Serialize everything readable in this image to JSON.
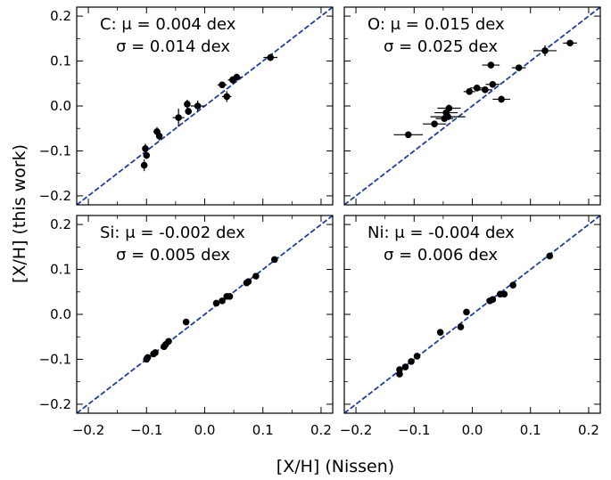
{
  "figure": {
    "xlabel": "[X/H] (Nissen)",
    "ylabel": "[X/H] (this work)"
  },
  "chart_data": [
    {
      "type": "scatter",
      "element": "C",
      "annotation": [
        "C: μ = 0.004 dex",
        "σ = 0.014 dex"
      ],
      "xlim": [
        -0.22,
        0.22
      ],
      "ylim": [
        -0.22,
        0.22
      ],
      "xticks": [
        "−0.2",
        "−0.1",
        "0.0",
        "0.1",
        "0.2"
      ],
      "yticks": [
        "−0.2",
        "−0.1",
        "0.0",
        "0.1",
        "0.2"
      ],
      "show_xticklabels": false,
      "show_yticklabels": true,
      "one_to_one_line": true,
      "line_color": "#1f3f9f",
      "points": [
        {
          "x": -0.104,
          "y": -0.132,
          "xerr": 0.003,
          "yerr": 0.013
        },
        {
          "x": -0.102,
          "y": -0.095,
          "xerr": 0.005,
          "yerr": 0.011
        },
        {
          "x": -0.1,
          "y": -0.11,
          "xerr": 0.004,
          "yerr": 0.008
        },
        {
          "x": -0.082,
          "y": -0.057,
          "xerr": 0.006,
          "yerr": 0.01
        },
        {
          "x": -0.078,
          "y": -0.067,
          "xerr": 0.005,
          "yerr": 0.01
        },
        {
          "x": -0.045,
          "y": -0.026,
          "xerr": 0.01,
          "yerr": 0.02
        },
        {
          "x": -0.03,
          "y": 0.004,
          "xerr": 0.005,
          "yerr": 0.01
        },
        {
          "x": -0.028,
          "y": -0.012,
          "xerr": 0.006,
          "yerr": 0.008
        },
        {
          "x": -0.012,
          "y": 0.0,
          "xerr": 0.012,
          "yerr": 0.012
        },
        {
          "x": 0.03,
          "y": 0.047,
          "xerr": 0.008,
          "yerr": 0.005
        },
        {
          "x": 0.038,
          "y": 0.021,
          "xerr": 0.008,
          "yerr": 0.012
        },
        {
          "x": 0.048,
          "y": 0.058,
          "xerr": 0.008,
          "yerr": 0.008
        },
        {
          "x": 0.055,
          "y": 0.064,
          "xerr": 0.008,
          "yerr": 0.008
        },
        {
          "x": 0.113,
          "y": 0.108,
          "xerr": 0.012,
          "yerr": 0.008
        }
      ]
    },
    {
      "type": "scatter",
      "element": "O",
      "annotation": [
        "O: μ = 0.015 dex",
        "σ = 0.025 dex"
      ],
      "xlim": [
        -0.22,
        0.22
      ],
      "ylim": [
        -0.22,
        0.22
      ],
      "xticks": [
        "−0.2",
        "−0.1",
        "0.0",
        "0.1",
        "0.2"
      ],
      "yticks": [
        "−0.2",
        "−0.1",
        "0.0",
        "0.1",
        "0.2"
      ],
      "show_xticklabels": false,
      "show_yticklabels": false,
      "one_to_one_line": true,
      "line_color": "#1f3f9f",
      "points": [
        {
          "x": -0.11,
          "y": -0.064,
          "xerr": 0.025,
          "yerr": 0.0
        },
        {
          "x": -0.065,
          "y": -0.04,
          "xerr": 0.02,
          "yerr": 0.005
        },
        {
          "x": -0.048,
          "y": -0.028,
          "xerr": 0.015,
          "yerr": 0.005
        },
        {
          "x": -0.045,
          "y": -0.015,
          "xerr": 0.02,
          "yerr": 0.008
        },
        {
          "x": -0.042,
          "y": -0.024,
          "xerr": 0.03,
          "yerr": 0.005
        },
        {
          "x": -0.04,
          "y": -0.005,
          "xerr": 0.02,
          "yerr": 0.008
        },
        {
          "x": -0.005,
          "y": 0.032,
          "xerr": 0.01,
          "yerr": 0.005
        },
        {
          "x": 0.008,
          "y": 0.04,
          "xerr": 0.012,
          "yerr": 0.006
        },
        {
          "x": 0.022,
          "y": 0.036,
          "xerr": 0.012,
          "yerr": 0.005
        },
        {
          "x": 0.035,
          "y": 0.048,
          "xerr": 0.012,
          "yerr": 0.006
        },
        {
          "x": 0.032,
          "y": 0.091,
          "xerr": 0.015,
          "yerr": 0.003
        },
        {
          "x": 0.05,
          "y": 0.015,
          "xerr": 0.015,
          "yerr": 0.008
        },
        {
          "x": 0.08,
          "y": 0.085,
          "xerr": 0.012,
          "yerr": 0.0
        },
        {
          "x": 0.125,
          "y": 0.123,
          "xerr": 0.02,
          "yerr": 0.012
        },
        {
          "x": 0.168,
          "y": 0.14,
          "xerr": 0.012,
          "yerr": 0.004
        }
      ]
    },
    {
      "type": "scatter",
      "element": "Si",
      "annotation": [
        "Si: μ = -0.002 dex",
        "σ = 0.005 dex"
      ],
      "xlim": [
        -0.22,
        0.22
      ],
      "ylim": [
        -0.22,
        0.22
      ],
      "xticks": [
        "−0.2",
        "−0.1",
        "0.0",
        "0.1",
        "0.2"
      ],
      "yticks": [
        "−0.2",
        "−0.1",
        "0.0",
        "0.1",
        "0.2"
      ],
      "show_xticklabels": true,
      "show_yticklabels": true,
      "one_to_one_line": true,
      "line_color": "#1f3f9f",
      "points": [
        {
          "x": -0.1,
          "y": -0.1
        },
        {
          "x": -0.098,
          "y": -0.096
        },
        {
          "x": -0.088,
          "y": -0.088
        },
        {
          "x": -0.085,
          "y": -0.085
        },
        {
          "x": -0.07,
          "y": -0.072
        },
        {
          "x": -0.067,
          "y": -0.067
        },
        {
          "x": -0.062,
          "y": -0.06
        },
        {
          "x": -0.032,
          "y": -0.017
        },
        {
          "x": 0.02,
          "y": 0.025
        },
        {
          "x": 0.03,
          "y": 0.03
        },
        {
          "x": 0.038,
          "y": 0.04
        },
        {
          "x": 0.043,
          "y": 0.04
        },
        {
          "x": 0.072,
          "y": 0.07
        },
        {
          "x": 0.075,
          "y": 0.073
        },
        {
          "x": 0.088,
          "y": 0.085
        },
        {
          "x": 0.12,
          "y": 0.122
        }
      ]
    },
    {
      "type": "scatter",
      "element": "Ni",
      "annotation": [
        "Ni: μ = -0.004 dex",
        "σ = 0.006 dex"
      ],
      "xlim": [
        -0.22,
        0.22
      ],
      "ylim": [
        -0.22,
        0.22
      ],
      "xticks": [
        "−0.2",
        "−0.1",
        "0.0",
        "0.1",
        "0.2"
      ],
      "yticks": [
        "−0.2",
        "−0.1",
        "0.0",
        "0.1",
        "0.2"
      ],
      "show_xticklabels": true,
      "show_yticklabels": false,
      "one_to_one_line": true,
      "line_color": "#1f3f9f",
      "points": [
        {
          "x": -0.125,
          "y": -0.133
        },
        {
          "x": -0.125,
          "y": -0.123
        },
        {
          "x": -0.115,
          "y": -0.117
        },
        {
          "x": -0.105,
          "y": -0.105
        },
        {
          "x": -0.095,
          "y": -0.093
        },
        {
          "x": -0.055,
          "y": -0.04
        },
        {
          "x": -0.02,
          "y": -0.028
        },
        {
          "x": -0.01,
          "y": 0.005
        },
        {
          "x": 0.03,
          "y": 0.03
        },
        {
          "x": 0.035,
          "y": 0.033
        },
        {
          "x": 0.048,
          "y": 0.045
        },
        {
          "x": 0.055,
          "y": 0.045
        },
        {
          "x": 0.07,
          "y": 0.065
        },
        {
          "x": 0.133,
          "y": 0.13
        }
      ]
    }
  ]
}
